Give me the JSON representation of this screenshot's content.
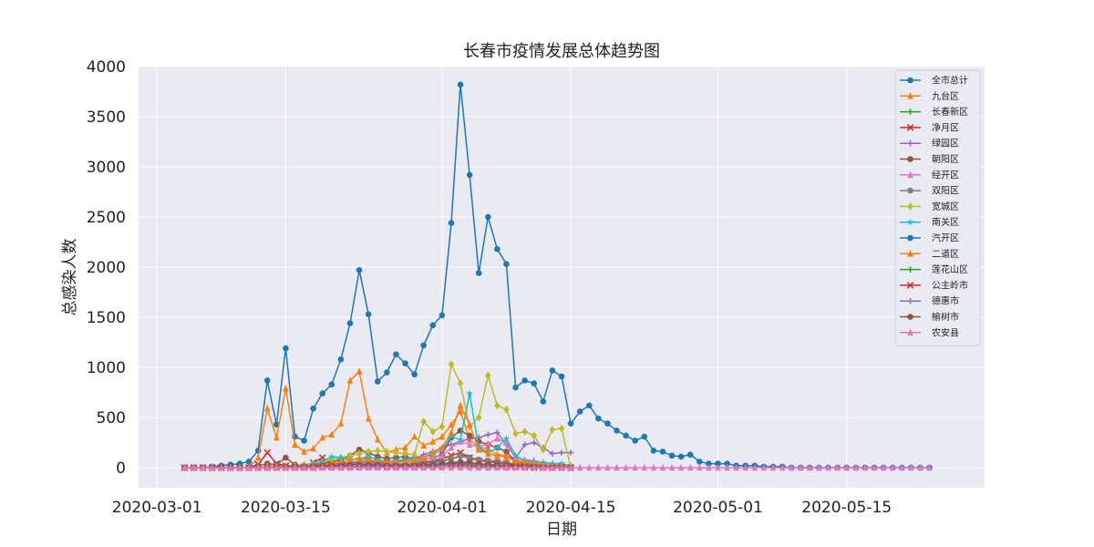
{
  "chart_data": {
    "type": "line",
    "title": "长春市疫情发展总体趋势图",
    "xlabel": "日期",
    "ylabel": "总感染人数",
    "x_tick_labels": [
      "2020-03-01",
      "2020-03-15",
      "2020-04-01",
      "2020-04-15",
      "2020-05-01",
      "2020-05-15"
    ],
    "x_tick_dates": [
      "2020-03-01",
      "2020-03-15",
      "2020-04-01",
      "2020-04-15",
      "2020-05-01",
      "2020-05-15"
    ],
    "y_tick_labels": [
      "0",
      "500",
      "1000",
      "1500",
      "2000",
      "2500",
      "3000",
      "3500",
      "4000"
    ],
    "xlim": [
      "2020-02-28",
      "2020-05-30"
    ],
    "ylim": [
      -200,
      4000
    ],
    "grid": true,
    "legend_position": "top-right",
    "style": {
      "background": "#eaeaf2",
      "grid_color": "#ffffff"
    },
    "start_date": "2020-03-04",
    "series": [
      {
        "name": "全市总计",
        "color": "#1f77b4",
        "marker": "o",
        "start": "2020-03-04",
        "values": [
          0,
          0,
          0,
          10,
          20,
          30,
          40,
          60,
          170,
          870,
          430,
          1190,
          310,
          270,
          590,
          740,
          830,
          1080,
          1440,
          1970,
          1530,
          860,
          950,
          1130,
          1040,
          930,
          1220,
          1420,
          1520,
          2440,
          3820,
          2920,
          1940,
          2500,
          2180,
          2030,
          800,
          870,
          840,
          660,
          970,
          910,
          440,
          560,
          620,
          490,
          440,
          370,
          320,
          270,
          310,
          170,
          160,
          120,
          110,
          130,
          60,
          40,
          40,
          40,
          20,
          20,
          20,
          10,
          10,
          10,
          0,
          0,
          0,
          0,
          0,
          0,
          0,
          0,
          0,
          0,
          0,
          0,
          0,
          0,
          0,
          0
        ]
      },
      {
        "name": "九台区",
        "color": "#ff7f0e",
        "marker": "^",
        "start": "2020-03-04",
        "values": [
          0,
          0,
          0,
          0,
          0,
          0,
          0,
          0,
          100,
          590,
          300,
          790,
          230,
          160,
          190,
          300,
          330,
          440,
          870,
          960,
          490,
          280,
          150,
          180,
          200,
          310,
          220,
          260,
          310,
          430,
          560,
          280,
          200,
          190,
          130,
          120,
          80,
          60,
          50,
          30,
          20,
          20,
          10
        ]
      },
      {
        "name": "长春新区",
        "color": "#2ca02c",
        "marker": "+",
        "start": "2020-03-04",
        "values": [
          0,
          0,
          0,
          0,
          0,
          0,
          0,
          0,
          0,
          0,
          0,
          10,
          10,
          20,
          20,
          30,
          40,
          60,
          40,
          40,
          50,
          60,
          70,
          60,
          60,
          50,
          60,
          60,
          70,
          90,
          110,
          100,
          80,
          70,
          60,
          50,
          30,
          20,
          20,
          10,
          10,
          10,
          0
        ]
      },
      {
        "name": "净月区",
        "color": "#d62728",
        "marker": "x",
        "start": "2020-03-04",
        "values": [
          0,
          0,
          0,
          0,
          0,
          0,
          0,
          0,
          30,
          150,
          40,
          20,
          10,
          10,
          50,
          100,
          30,
          40,
          50,
          60,
          70,
          50,
          40,
          30,
          40,
          30,
          50,
          70,
          90,
          120,
          150,
          100,
          70,
          60,
          50,
          40,
          20,
          10,
          10,
          10,
          0,
          0,
          0
        ]
      },
      {
        "name": "绿园区",
        "color": "#9467bd",
        "marker": "+",
        "start": "2020-03-04",
        "values": [
          0,
          0,
          0,
          0,
          0,
          0,
          0,
          0,
          0,
          0,
          10,
          10,
          10,
          10,
          20,
          30,
          30,
          40,
          50,
          60,
          70,
          60,
          50,
          60,
          80,
          90,
          130,
          160,
          200,
          230,
          260,
          290,
          300,
          330,
          350,
          230,
          100,
          230,
          250,
          200,
          140,
          150,
          150
        ]
      },
      {
        "name": "朝阳区",
        "color": "#8c564b",
        "marker": "o",
        "start": "2020-03-04",
        "values": [
          0,
          0,
          0,
          0,
          0,
          0,
          0,
          0,
          20,
          40,
          30,
          100,
          30,
          20,
          30,
          40,
          60,
          80,
          120,
          180,
          150,
          110,
          90,
          100,
          110,
          90,
          80,
          100,
          130,
          300,
          370,
          320,
          260,
          230,
          200,
          160,
          60,
          40,
          30,
          20,
          20,
          10,
          0
        ]
      },
      {
        "name": "经开区",
        "color": "#e377c2",
        "marker": "^",
        "start": "2020-03-04",
        "values": [
          0,
          0,
          0,
          0,
          0,
          0,
          0,
          0,
          0,
          10,
          10,
          10,
          10,
          10,
          20,
          20,
          30,
          30,
          40,
          40,
          50,
          40,
          40,
          50,
          60,
          60,
          80,
          100,
          120,
          200,
          260,
          230,
          210,
          240,
          290,
          250,
          100,
          80,
          70,
          50,
          40,
          30,
          20
        ]
      },
      {
        "name": "双阳区",
        "color": "#7f7f7f",
        "marker": "o",
        "start": "2020-03-04",
        "values": [
          0,
          0,
          0,
          0,
          0,
          0,
          0,
          0,
          0,
          0,
          0,
          10,
          10,
          10,
          10,
          20,
          30,
          30,
          40,
          40,
          50,
          40,
          30,
          30,
          30,
          30,
          40,
          50,
          60,
          90,
          120,
          100,
          80,
          70,
          60,
          50,
          40,
          30,
          20,
          20,
          10,
          10,
          0
        ]
      },
      {
        "name": "宽城区",
        "color": "#bcbd22",
        "marker": "D",
        "start": "2020-03-04",
        "values": [
          0,
          0,
          0,
          0,
          0,
          0,
          0,
          0,
          0,
          10,
          10,
          20,
          20,
          30,
          40,
          60,
          80,
          100,
          120,
          140,
          160,
          170,
          160,
          150,
          140,
          130,
          460,
          360,
          410,
          1030,
          840,
          410,
          500,
          920,
          620,
          580,
          340,
          360,
          320,
          180,
          380,
          390,
          0
        ]
      },
      {
        "name": "南关区",
        "color": "#17becf",
        "marker": "*",
        "start": "2020-03-04",
        "values": [
          0,
          0,
          0,
          0,
          0,
          0,
          0,
          0,
          0,
          0,
          10,
          10,
          20,
          20,
          40,
          60,
          110,
          100,
          80,
          90,
          110,
          80,
          60,
          70,
          80,
          90,
          100,
          130,
          180,
          310,
          280,
          740,
          200,
          150,
          200,
          290,
          120,
          70,
          60,
          50,
          40,
          40,
          20
        ]
      },
      {
        "name": "汽开区",
        "color": "#1f77b4",
        "marker": "o",
        "start": "2020-03-04",
        "values": [
          0,
          0,
          0,
          0,
          0,
          0,
          0,
          0,
          0,
          0,
          0,
          0,
          0,
          0,
          0,
          10,
          10,
          10,
          10,
          10,
          20,
          20,
          20,
          20,
          20,
          20,
          20,
          30,
          30,
          40,
          50,
          40,
          40,
          30,
          30,
          20,
          10,
          10,
          10,
          0,
          0,
          0,
          0
        ]
      },
      {
        "name": "二道区",
        "color": "#ff7f0e",
        "marker": "^",
        "start": "2020-03-04",
        "values": [
          0,
          0,
          0,
          0,
          0,
          0,
          0,
          0,
          0,
          10,
          10,
          10,
          10,
          20,
          20,
          30,
          40,
          60,
          80,
          90,
          80,
          60,
          60,
          50,
          60,
          80,
          100,
          150,
          200,
          350,
          620,
          430,
          180,
          140,
          120,
          110,
          60,
          50,
          40,
          30,
          20,
          20,
          10
        ]
      },
      {
        "name": "莲花山区",
        "color": "#2ca02c",
        "marker": "+",
        "start": "2020-03-04",
        "values": [
          0,
          0,
          0,
          0,
          0,
          0,
          0,
          0,
          0,
          0,
          0,
          0,
          0,
          0,
          10,
          10,
          10,
          10,
          10,
          10,
          10,
          10,
          10,
          10,
          10,
          10,
          10,
          10,
          20,
          20,
          20,
          20,
          10,
          10,
          10,
          10,
          10,
          0,
          0,
          0,
          0,
          0,
          0
        ]
      },
      {
        "name": "公主岭市",
        "color": "#d62728",
        "marker": "x",
        "start": "2020-03-04",
        "values": [
          0,
          0,
          0,
          0,
          0,
          0,
          0,
          0,
          0,
          0,
          0,
          0,
          0,
          0,
          0,
          10,
          10,
          10,
          10,
          10,
          10,
          10,
          10,
          10,
          10,
          10,
          20,
          20,
          20,
          30,
          30,
          30,
          20,
          20,
          20,
          10,
          10,
          10,
          0,
          0,
          0,
          0,
          0
        ]
      },
      {
        "name": "德惠市",
        "color": "#9467bd",
        "marker": "+",
        "start": "2020-03-04",
        "values": [
          0,
          0,
          0,
          0,
          0,
          0,
          0,
          0,
          0,
          0,
          0,
          0,
          0,
          0,
          0,
          0,
          10,
          10,
          10,
          10,
          10,
          10,
          10,
          10,
          10,
          10,
          10,
          20,
          20,
          30,
          40,
          30,
          20,
          20,
          20,
          10,
          10,
          10,
          10,
          0,
          0,
          0,
          0
        ]
      },
      {
        "name": "榆树市",
        "color": "#8c564b",
        "marker": "o",
        "start": "2020-03-04",
        "values": [
          0,
          0,
          0,
          0,
          0,
          0,
          0,
          0,
          0,
          0,
          0,
          10,
          10,
          10,
          10,
          20,
          20,
          20,
          30,
          30,
          30,
          30,
          20,
          20,
          20,
          20,
          30,
          30,
          40,
          50,
          60,
          50,
          40,
          30,
          30,
          20,
          10,
          10,
          10,
          0,
          0,
          0,
          0
        ]
      },
      {
        "name": "农安县",
        "color": "#e377c2",
        "marker": "^",
        "start": "2020-03-04",
        "values": [
          0,
          0,
          0,
          0,
          0,
          0,
          0,
          0,
          0,
          0,
          0,
          0,
          0,
          0,
          0,
          0,
          0,
          0,
          0,
          0,
          0,
          0,
          0,
          0,
          0,
          0,
          0,
          0,
          0,
          0,
          0,
          0,
          0,
          0,
          0,
          0,
          0,
          0,
          0,
          0,
          0,
          0,
          0,
          0,
          0,
          0,
          0,
          0,
          0,
          0,
          0,
          0,
          0,
          0,
          0,
          0,
          0,
          0,
          0,
          0,
          0,
          0,
          0,
          0,
          0,
          0,
          0,
          0,
          0,
          0,
          0,
          0,
          0,
          0,
          0,
          0,
          0,
          0,
          0,
          0,
          0,
          0
        ]
      }
    ]
  }
}
